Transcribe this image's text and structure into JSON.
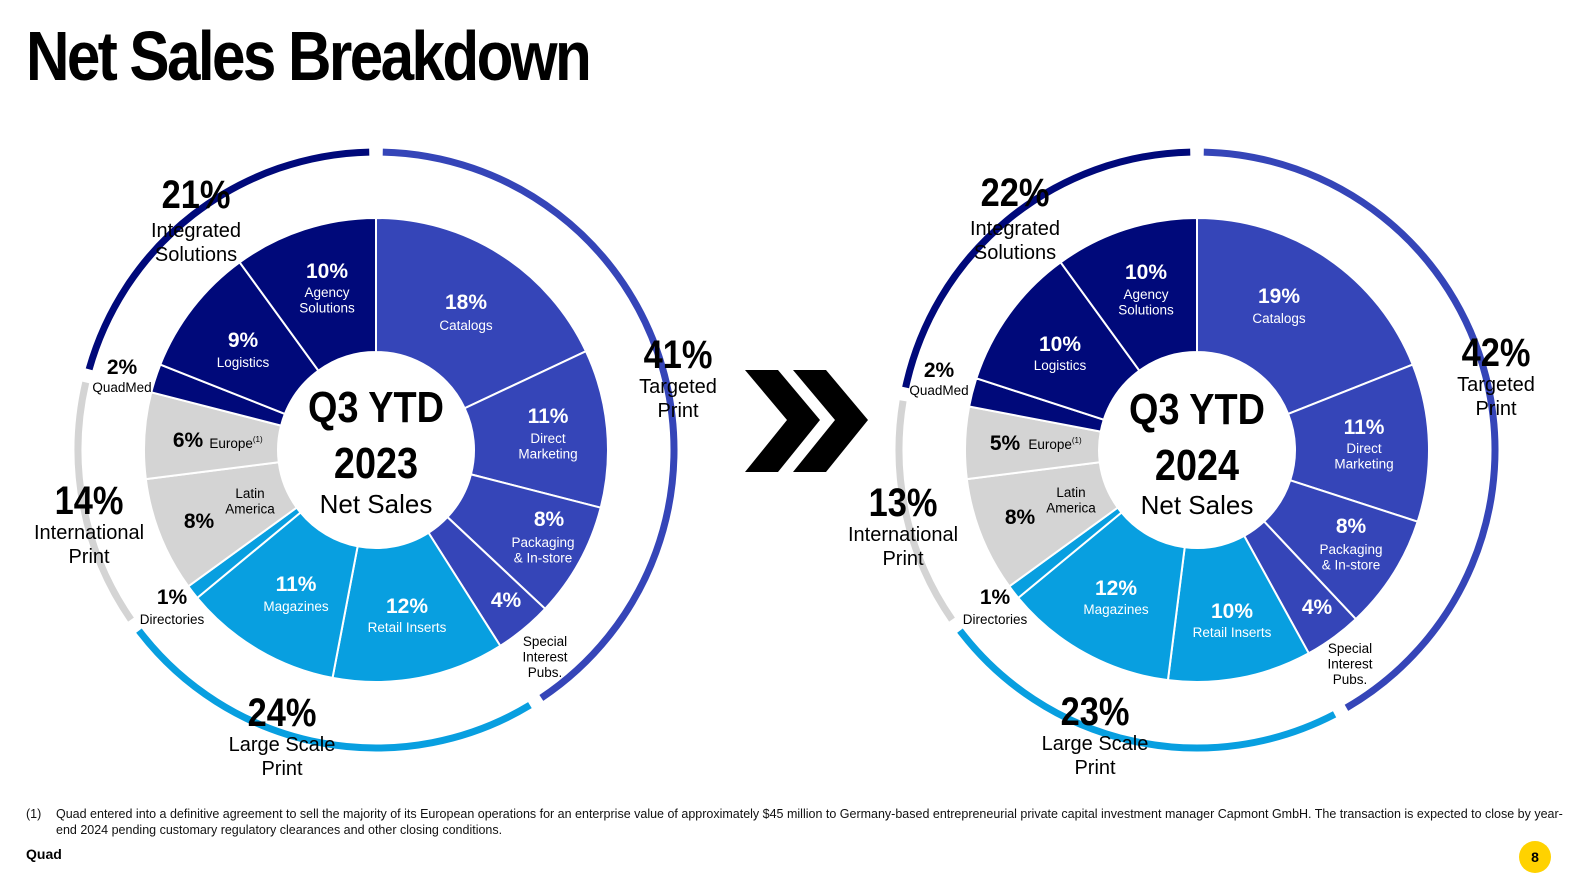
{
  "title": "Net Sales Breakdown",
  "colors": {
    "targeted_print": "#3545b8",
    "integrated_solutions": "#00097a",
    "international_print": "#d4d4d4",
    "large_scale_print": "#089fe0",
    "arrow": "#000000",
    "page_badge": "#ffd200"
  },
  "chart_data": [
    {
      "type": "pie",
      "center": {
        "line1": "Q3 YTD",
        "line2": "2023",
        "line3": "Net Sales"
      },
      "segments": [
        {
          "value": 18,
          "label": "18%",
          "name": [
            "Catalogs"
          ],
          "group": "targeted_print"
        },
        {
          "value": 11,
          "label": "11%",
          "name": [
            "Direct",
            "Marketing"
          ],
          "group": "targeted_print"
        },
        {
          "value": 8,
          "label": "8%",
          "name": [
            "Packaging",
            "& In-store"
          ],
          "group": "targeted_print"
        },
        {
          "value": 4,
          "label": "4%",
          "name": [
            "Special",
            "Interest",
            "Pubs."
          ],
          "group": "targeted_print"
        },
        {
          "value": 12,
          "label": "12%",
          "name": [
            "Retail Inserts"
          ],
          "group": "large_scale_print"
        },
        {
          "value": 11,
          "label": "11%",
          "name": [
            "Magazines"
          ],
          "group": "large_scale_print"
        },
        {
          "value": 1,
          "label": "1%",
          "name": [
            "Directories"
          ],
          "group": "large_scale_print"
        },
        {
          "value": 8,
          "label": "8%",
          "name": [
            "Latin",
            "America"
          ],
          "group": "international_print"
        },
        {
          "value": 6,
          "label": "6%",
          "name": [
            "Europe"
          ],
          "sup": "(1)",
          "group": "international_print"
        },
        {
          "value": 2,
          "label": "2%",
          "name": [
            "QuadMed"
          ],
          "group": "integrated_solutions"
        },
        {
          "value": 9,
          "label": "9%",
          "name": [
            "Logistics"
          ],
          "group": "integrated_solutions"
        },
        {
          "value": 10,
          "label": "10%",
          "name": [
            "Agency",
            "Solutions"
          ],
          "group": "integrated_solutions"
        }
      ],
      "groups": [
        {
          "key": "targeted_print",
          "label": "41%",
          "name": [
            "Targeted",
            "Print"
          ]
        },
        {
          "key": "large_scale_print",
          "label": "24%",
          "name": [
            "Large Scale",
            "Print"
          ]
        },
        {
          "key": "international_print",
          "label": "14%",
          "name": [
            "International",
            "Print"
          ]
        },
        {
          "key": "integrated_solutions",
          "label": "21%",
          "name": [
            "Integrated",
            "Solutions"
          ]
        }
      ]
    },
    {
      "type": "pie",
      "center": {
        "line1": "Q3 YTD",
        "line2": "2024",
        "line3": "Net Sales"
      },
      "segments": [
        {
          "value": 19,
          "label": "19%",
          "name": [
            "Catalogs"
          ],
          "group": "targeted_print"
        },
        {
          "value": 11,
          "label": "11%",
          "name": [
            "Direct",
            "Marketing"
          ],
          "group": "targeted_print"
        },
        {
          "value": 8,
          "label": "8%",
          "name": [
            "Packaging",
            "& In-store"
          ],
          "group": "targeted_print"
        },
        {
          "value": 4,
          "label": "4%",
          "name": [
            "Special",
            "Interest",
            "Pubs."
          ],
          "group": "targeted_print"
        },
        {
          "value": 10,
          "label": "10%",
          "name": [
            "Retail Inserts"
          ],
          "group": "large_scale_print"
        },
        {
          "value": 12,
          "label": "12%",
          "name": [
            "Magazines"
          ],
          "group": "large_scale_print"
        },
        {
          "value": 1,
          "label": "1%",
          "name": [
            "Directories"
          ],
          "group": "large_scale_print"
        },
        {
          "value": 8,
          "label": "8%",
          "name": [
            "Latin",
            "America"
          ],
          "group": "international_print"
        },
        {
          "value": 5,
          "label": "5%",
          "name": [
            "Europe"
          ],
          "sup": "(1)",
          "group": "international_print"
        },
        {
          "value": 2,
          "label": "2%",
          "name": [
            "QuadMed"
          ],
          "group": "integrated_solutions"
        },
        {
          "value": 10,
          "label": "10%",
          "name": [
            "Logistics"
          ],
          "group": "integrated_solutions"
        },
        {
          "value": 10,
          "label": "10%",
          "name": [
            "Agency",
            "Solutions"
          ],
          "group": "integrated_solutions"
        }
      ],
      "groups": [
        {
          "key": "targeted_print",
          "label": "42%",
          "name": [
            "Targeted",
            "Print"
          ]
        },
        {
          "key": "large_scale_print",
          "label": "23%",
          "name": [
            "Large Scale",
            "Print"
          ]
        },
        {
          "key": "international_print",
          "label": "13%",
          "name": [
            "International",
            "Print"
          ]
        },
        {
          "key": "integrated_solutions",
          "label": "22%",
          "name": [
            "Integrated",
            "Solutions"
          ]
        }
      ]
    }
  ],
  "footnote": {
    "mark": "(1)",
    "text": "Quad entered into a definitive agreement to sell the majority of its European operations for an enterprise value of approximately $45 million to Germany-based entrepreneurial private capital investment manager Capmont GmbH. The transaction is expected to close by year-end 2024 pending customary regulatory clearances and other closing conditions."
  },
  "brand": "Quad",
  "page_number": "8"
}
